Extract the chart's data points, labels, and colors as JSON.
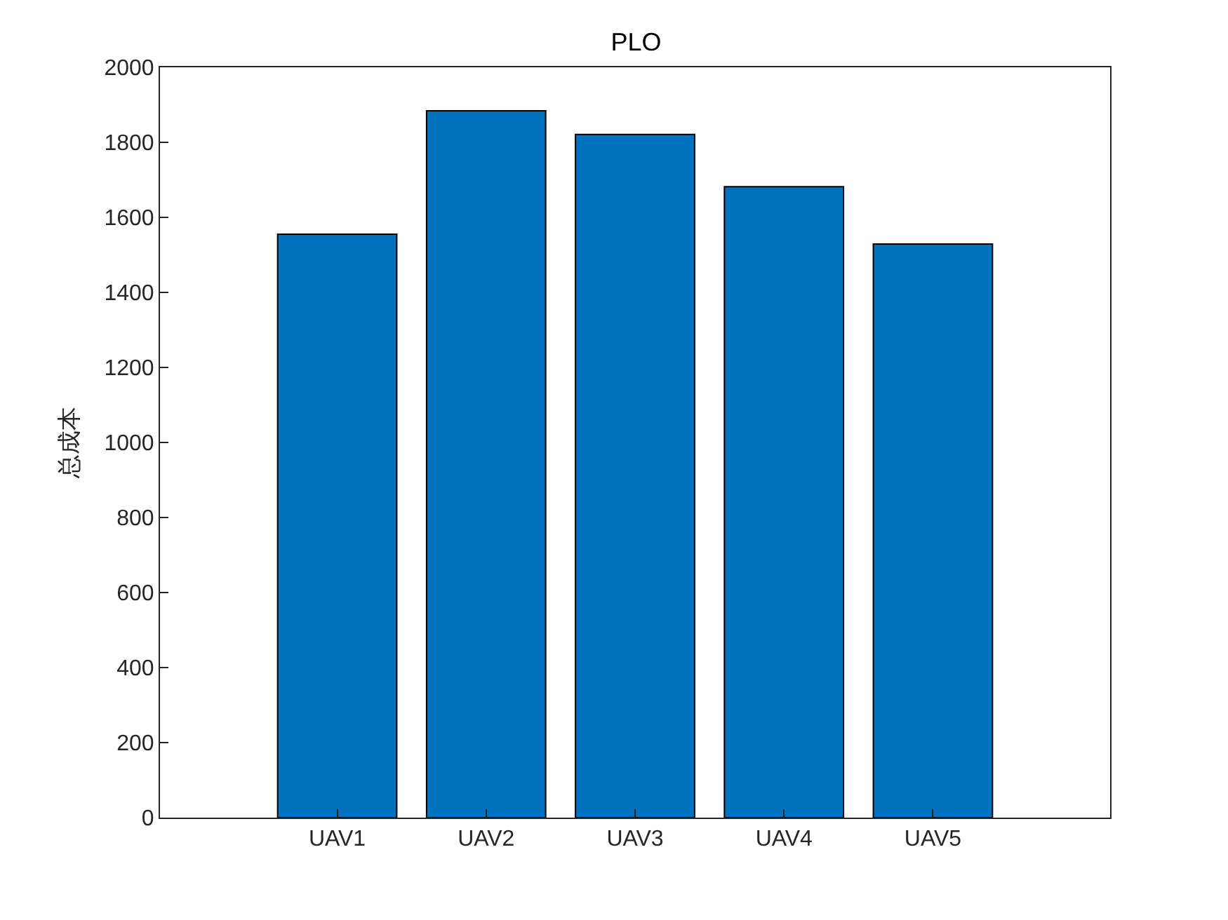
{
  "chart_data": {
    "type": "bar",
    "title": "PLO",
    "ylabel": "总成本",
    "categories": [
      "UAV1",
      "UAV2",
      "UAV3",
      "UAV4",
      "UAV5"
    ],
    "values": [
      1555,
      1884,
      1821,
      1682,
      1529
    ],
    "color": "#0072bd",
    "ylim": [
      0,
      2000
    ],
    "yticks": [
      0,
      200,
      400,
      600,
      800,
      1000,
      1200,
      1400,
      1600,
      1800,
      2000
    ],
    "grid": false
  }
}
